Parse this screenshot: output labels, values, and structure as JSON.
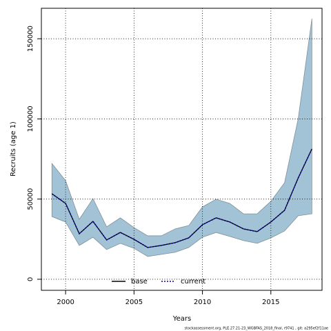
{
  "chart_data": {
    "type": "band_line",
    "xlabel": "Years",
    "ylabel": "Recruits (age 1)",
    "footer": "stockassessment.org, PLE.27.21-23_WGBFAS_2018_final, r9741 , git: a295ef2f11ae",
    "x": [
      1999,
      2000,
      2001,
      2002,
      2003,
      2004,
      2005,
      2006,
      2007,
      2008,
      2009,
      2010,
      2011,
      2012,
      2013,
      2014,
      2015,
      2016,
      2017,
      2018
    ],
    "band": {
      "color": "#a2c3d5",
      "edge": "#7f8f99",
      "upper": [
        72200,
        61500,
        37400,
        50300,
        32700,
        38300,
        32200,
        27100,
        27100,
        31400,
        33500,
        45100,
        49900,
        47300,
        40800,
        40800,
        48600,
        60200,
        100200,
        162500
      ],
      "lower": [
        39100,
        35700,
        21100,
        26200,
        18500,
        22400,
        19300,
        14200,
        15500,
        16800,
        19800,
        26200,
        29200,
        26700,
        24100,
        22400,
        25800,
        30100,
        39600,
        40800
      ]
    },
    "series": [
      {
        "name": "base",
        "color": "#000000",
        "dash": false,
        "values": [
          53300,
          47300,
          28400,
          36100,
          24500,
          29200,
          24900,
          19800,
          21100,
          22800,
          25800,
          34000,
          38300,
          35700,
          31400,
          29700,
          35700,
          43000,
          63200,
          81300
        ]
      },
      {
        "name": "current",
        "color": "#00008b",
        "dash": true,
        "values": [
          53300,
          47300,
          28400,
          36100,
          24500,
          29200,
          24900,
          19800,
          21100,
          22800,
          25800,
          34000,
          38300,
          35700,
          31400,
          29700,
          35700,
          43000,
          63200,
          81300
        ]
      }
    ],
    "xlim": [
      1998.23,
      2018.74
    ],
    "ylim": [
      -6900,
      169000
    ],
    "xticks": [
      2000,
      2005,
      2010,
      2015
    ],
    "yticks": [
      0,
      50000,
      100000,
      150000
    ],
    "grid": true,
    "legend": "bottom"
  }
}
